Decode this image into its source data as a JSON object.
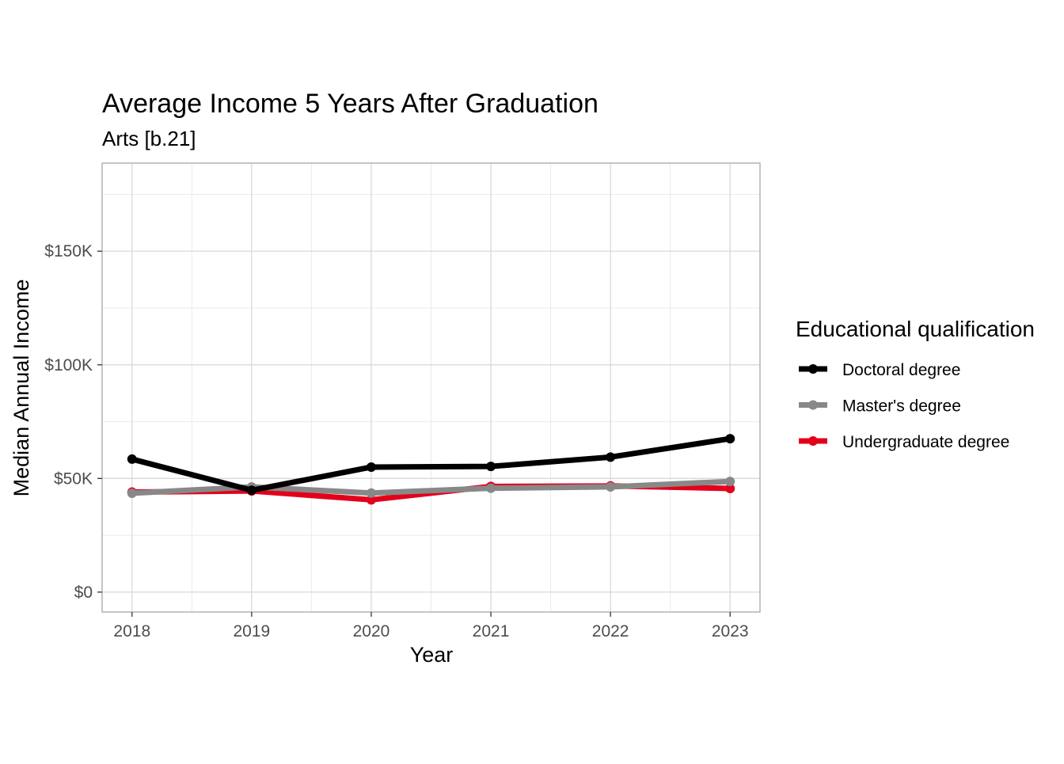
{
  "chart_data": {
    "type": "line",
    "title": "Average Income 5 Years After Graduation",
    "subtitle": "Arts [b.21]",
    "xlabel": "Year",
    "ylabel": "Median Annual Income",
    "x": [
      2018,
      2019,
      2020,
      2021,
      2022,
      2023
    ],
    "x_tick_labels": [
      "2018",
      "2019",
      "2020",
      "2021",
      "2022",
      "2023"
    ],
    "y_ticks": [
      0,
      50000,
      100000,
      150000
    ],
    "y_tick_labels": [
      "$0",
      "$50K",
      "$100K",
      "$150K"
    ],
    "xlim": [
      2017.75,
      2023.25
    ],
    "ylim": [
      -8750,
      188750
    ],
    "grid": true,
    "legend_title": "Educational qualification",
    "legend_position": "right",
    "series": [
      {
        "name": "Doctoral degree",
        "color": "#000000",
        "values": [
          58500,
          44800,
          55000,
          55300,
          59400,
          67500
        ]
      },
      {
        "name": "Master's degree",
        "color": "#888888",
        "values": [
          43500,
          46300,
          43600,
          45700,
          46300,
          48700
        ]
      },
      {
        "name": "Undergraduate degree",
        "color": "#e3001b",
        "values": [
          44000,
          44500,
          40600,
          46500,
          46700,
          45600
        ]
      }
    ]
  }
}
